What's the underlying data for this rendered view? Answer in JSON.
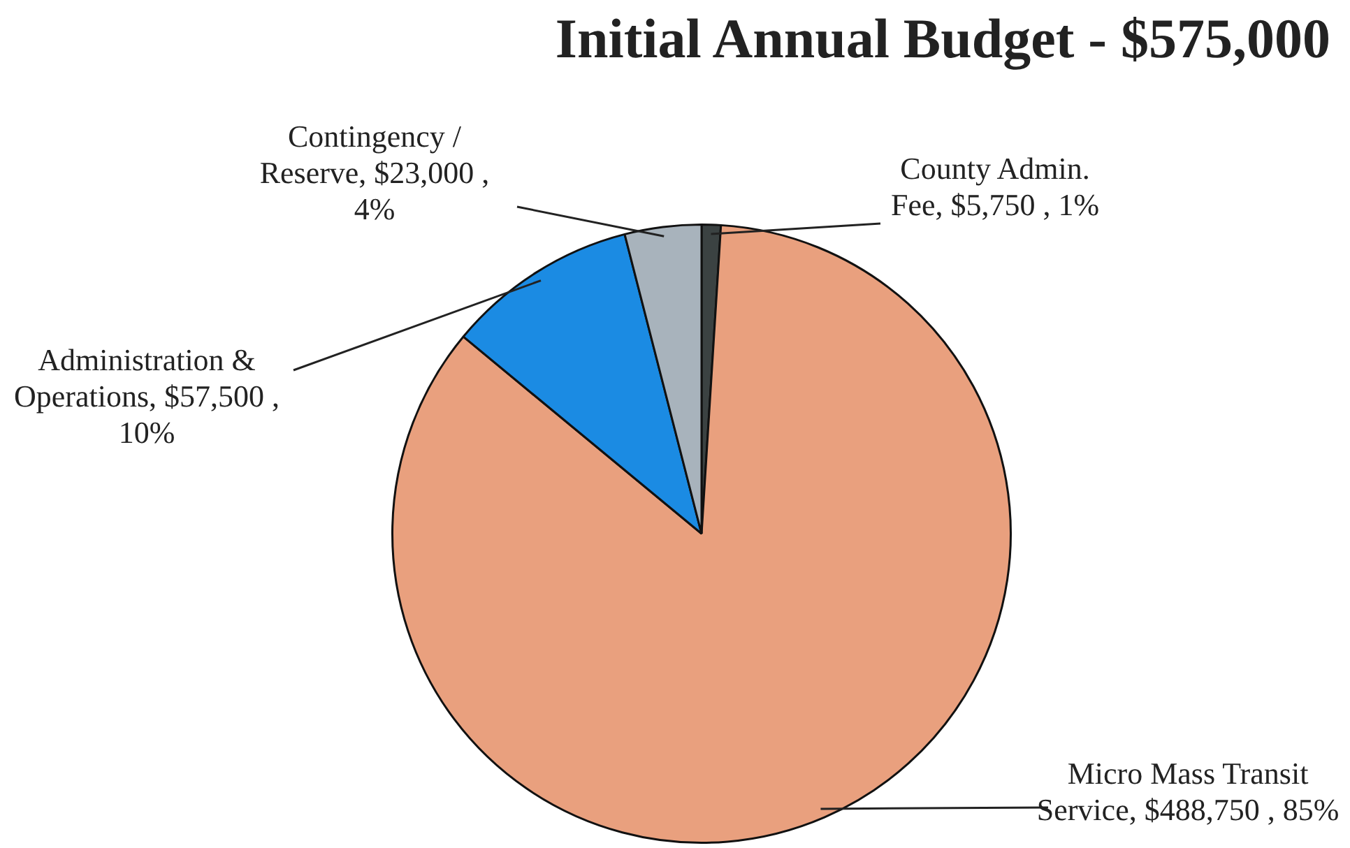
{
  "chart_data": {
    "type": "pie",
    "title": "Initial Annual Budget - $575,000",
    "categories": [
      "County Admin. Fee",
      "Micro Mass Transit Service",
      "Administration & Operations",
      "Contingency / Reserve"
    ],
    "values": [
      5750,
      488750,
      57500,
      23000
    ],
    "colors": [
      "#3b4242",
      "#e9a07e",
      "#1b8be3",
      "#a8b3bc"
    ],
    "value_labels": [
      "$5,750 , 1%",
      "$488,750 , 85%",
      "$57,500 , 10%",
      "$23,000 , 4%"
    ],
    "legend": false
  }
}
